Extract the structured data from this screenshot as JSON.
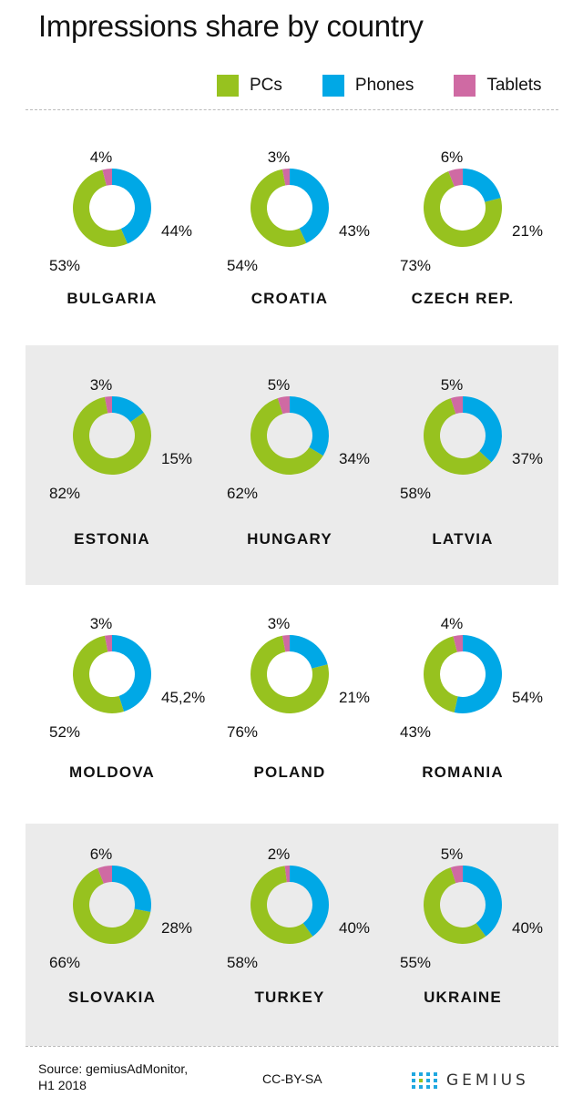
{
  "chart_data": {
    "type": "donut",
    "title": "Impressions share by country",
    "legend": {
      "placement": "top-right",
      "entries": [
        "PCs",
        "Phones",
        "Tablets"
      ]
    },
    "colors": {
      "PCs": "#97c21f",
      "Phones": "#00a8e6",
      "Tablets": "#cf6aa3"
    },
    "countries": [
      {
        "name": "BULGARIA",
        "pcs": 53,
        "phones": 44,
        "tablets": 4,
        "labels": {
          "pcs": "53%",
          "phones": "44%",
          "tablets": "4%"
        }
      },
      {
        "name": "CROATIA",
        "pcs": 54,
        "phones": 43,
        "tablets": 3,
        "labels": {
          "pcs": "54%",
          "phones": "43%",
          "tablets": "3%"
        }
      },
      {
        "name": "CZECH REP.",
        "pcs": 73,
        "phones": 21,
        "tablets": 6,
        "labels": {
          "pcs": "73%",
          "phones": "21%",
          "tablets": "6%"
        }
      },
      {
        "name": "ESTONIA",
        "pcs": 82,
        "phones": 15,
        "tablets": 3,
        "labels": {
          "pcs": "82%",
          "phones": "15%",
          "tablets": "3%"
        }
      },
      {
        "name": "HUNGARY",
        "pcs": 62,
        "phones": 34,
        "tablets": 5,
        "labels": {
          "pcs": "62%",
          "phones": "34%",
          "tablets": "5%"
        }
      },
      {
        "name": "LATVIA",
        "pcs": 58,
        "phones": 37,
        "tablets": 5,
        "labels": {
          "pcs": "58%",
          "phones": "37%",
          "tablets": "5%"
        }
      },
      {
        "name": "MOLDOVA",
        "pcs": 52,
        "phones": 45.2,
        "tablets": 3,
        "labels": {
          "pcs": "52%",
          "phones": "45,2%",
          "tablets": "3%"
        }
      },
      {
        "name": "POLAND",
        "pcs": 76,
        "phones": 21,
        "tablets": 3,
        "labels": {
          "pcs": "76%",
          "phones": "21%",
          "tablets": "3%"
        }
      },
      {
        "name": "ROMANIA",
        "pcs": 43,
        "phones": 54,
        "tablets": 4,
        "labels": {
          "pcs": "43%",
          "phones": "54%",
          "tablets": "4%"
        }
      },
      {
        "name": "SLOVAKIA",
        "pcs": 66,
        "phones": 28,
        "tablets": 6,
        "labels": {
          "pcs": "66%",
          "phones": "28%",
          "tablets": "6%"
        }
      },
      {
        "name": "TURKEY",
        "pcs": 58,
        "phones": 40,
        "tablets": 2,
        "labels": {
          "pcs": "58%",
          "phones": "40%",
          "tablets": "2%"
        }
      },
      {
        "name": "UKRAINE",
        "pcs": 55,
        "phones": 40,
        "tablets": 5,
        "labels": {
          "pcs": "55%",
          "phones": "40%",
          "tablets": "5%"
        }
      }
    ]
  },
  "footer": {
    "source_line1": "Source: gemiusAdMonitor,",
    "source_line2": "H1 2018",
    "license": "CC-BY-SA",
    "logo_text": "GEMIUS"
  }
}
